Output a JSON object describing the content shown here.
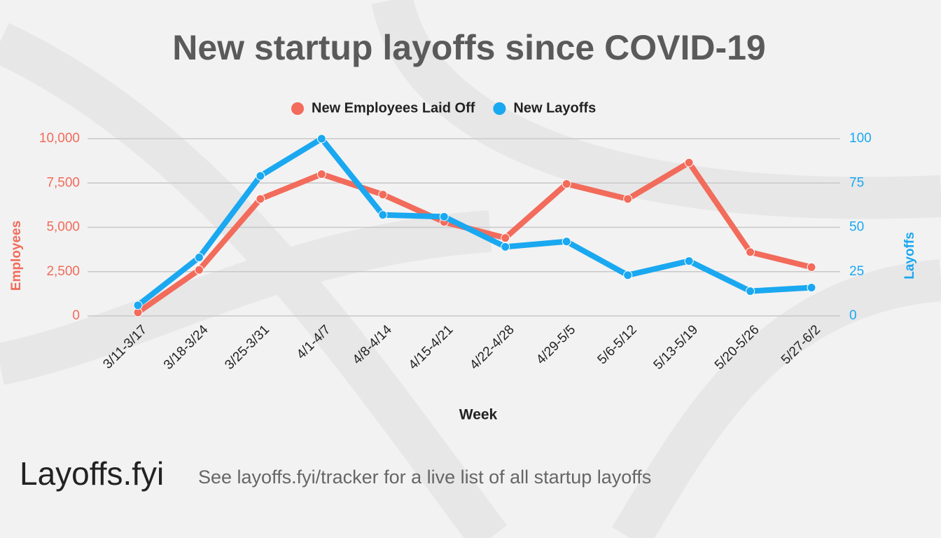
{
  "chart_data": {
    "type": "line",
    "title": "New startup layoffs since COVID-19",
    "categories": [
      "3/11-3/17",
      "3/18-3/24",
      "3/25-3/31",
      "4/1-4/7",
      "4/8-4/14",
      "4/15-4/21",
      "4/22-4/28",
      "4/29-5/5",
      "5/6-5/12",
      "5/13-5/19",
      "5/20-5/26",
      "5/27-6/2"
    ],
    "series": [
      {
        "name": "New Employees Laid Off",
        "color": "#f26b5b",
        "values": [
          200,
          2600,
          6600,
          8000,
          6850,
          5300,
          4400,
          7450,
          6600,
          8650,
          3600,
          2750
        ]
      },
      {
        "name": "New Layoffs",
        "color": "#1aa8f0",
        "axis": "y2",
        "values": [
          6,
          33,
          79,
          100,
          57,
          56,
          39,
          42,
          23,
          31,
          14,
          16
        ]
      }
    ],
    "xlabel": "Week",
    "ylabel": "Employees",
    "y2label": "Layoffs",
    "ylim": [
      0,
      10000
    ],
    "yticks": [
      0,
      {
        "value": 2500,
        "label": "2,500"
      },
      {
        "value": 5000,
        "label": "5,000"
      },
      {
        "value": 7500,
        "label": "7,500"
      },
      {
        "value": 10000,
        "label": "10,000"
      }
    ],
    "y2lim": [
      0,
      100
    ],
    "y2ticks": [
      0,
      25,
      50,
      75,
      100
    ],
    "grid": true,
    "legend": "top"
  },
  "footer": {
    "brand": "Layoffs.fyi",
    "note": "See layoffs.fyi/tracker for a live list of all startup layoffs"
  }
}
